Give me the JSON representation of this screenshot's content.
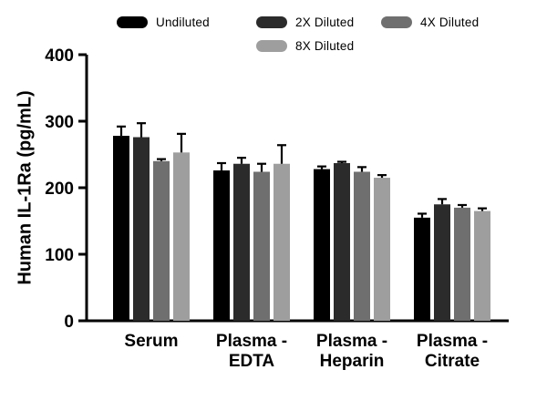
{
  "chart_data": {
    "type": "bar",
    "title": "",
    "xlabel": "",
    "ylabel": "Human IL-1Ra (pg/mL)",
    "ylim": [
      0,
      400
    ],
    "yticks": [
      0,
      100,
      200,
      300,
      400
    ],
    "grid": false,
    "legend_position": "top",
    "categories": [
      "Serum",
      "Plasma -\nEDTA",
      "Plasma -\nHeparin",
      "Plasma -\nCitrate"
    ],
    "series": [
      {
        "name": "Undiluted",
        "color": "#000000",
        "values": [
          278,
          226,
          228,
          155
        ],
        "errors": [
          14,
          11,
          4,
          6
        ]
      },
      {
        "name": "2X Diluted",
        "color": "#2b2b2b",
        "values": [
          276,
          236,
          237,
          175
        ],
        "errors": [
          21,
          9,
          2,
          8
        ]
      },
      {
        "name": "4X Diluted",
        "color": "#6f6f6f",
        "values": [
          240,
          224,
          224,
          170
        ],
        "errors": [
          3,
          12,
          7,
          4
        ]
      },
      {
        "name": "8X Diluted",
        "color": "#9e9e9e",
        "values": [
          253,
          236,
          215,
          165
        ],
        "errors": [
          28,
          28,
          4,
          4
        ]
      }
    ]
  }
}
